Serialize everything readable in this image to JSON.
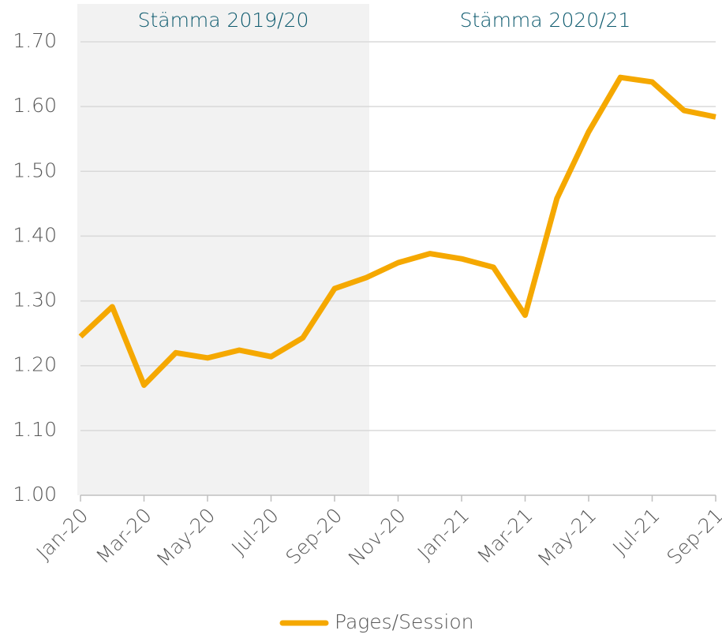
{
  "chart_data": {
    "type": "line",
    "annotations": [
      "Stämma 2019/20",
      "Stämma 2020/21"
    ],
    "categories": [
      "Jan-20",
      null,
      "Mar-20",
      null,
      "May-20",
      null,
      "Jul-20",
      null,
      "Sep-20",
      null,
      "Nov-20",
      null,
      "Jan-21",
      null,
      "Mar-21",
      null,
      "May-21",
      null,
      "Jul-21",
      null,
      "Sep-21"
    ],
    "series": [
      {
        "name": "Pages/Session",
        "color": "#f5a800",
        "values": [
          1.245,
          1.291,
          1.17,
          1.22,
          1.212,
          1.224,
          1.214,
          1.243,
          1.319,
          1.336,
          1.359,
          1.373,
          1.365,
          1.352,
          1.278,
          1.458,
          1.561,
          1.645,
          1.638,
          1.594,
          1.584
        ]
      }
    ],
    "ylim": [
      1.0,
      1.7
    ],
    "yticks": [
      {
        "value": 1.0,
        "label": "1.00"
      },
      {
        "value": 1.1,
        "label": "1.10"
      },
      {
        "value": 1.2,
        "label": "1.20"
      },
      {
        "value": 1.3,
        "label": "1.30"
      },
      {
        "value": 1.4,
        "label": "1.40"
      },
      {
        "value": 1.5,
        "label": "1.50"
      },
      {
        "value": 1.6,
        "label": "1.60"
      },
      {
        "value": 1.7,
        "label": "1.70"
      }
    ],
    "grid": true,
    "legend": "bottom"
  }
}
